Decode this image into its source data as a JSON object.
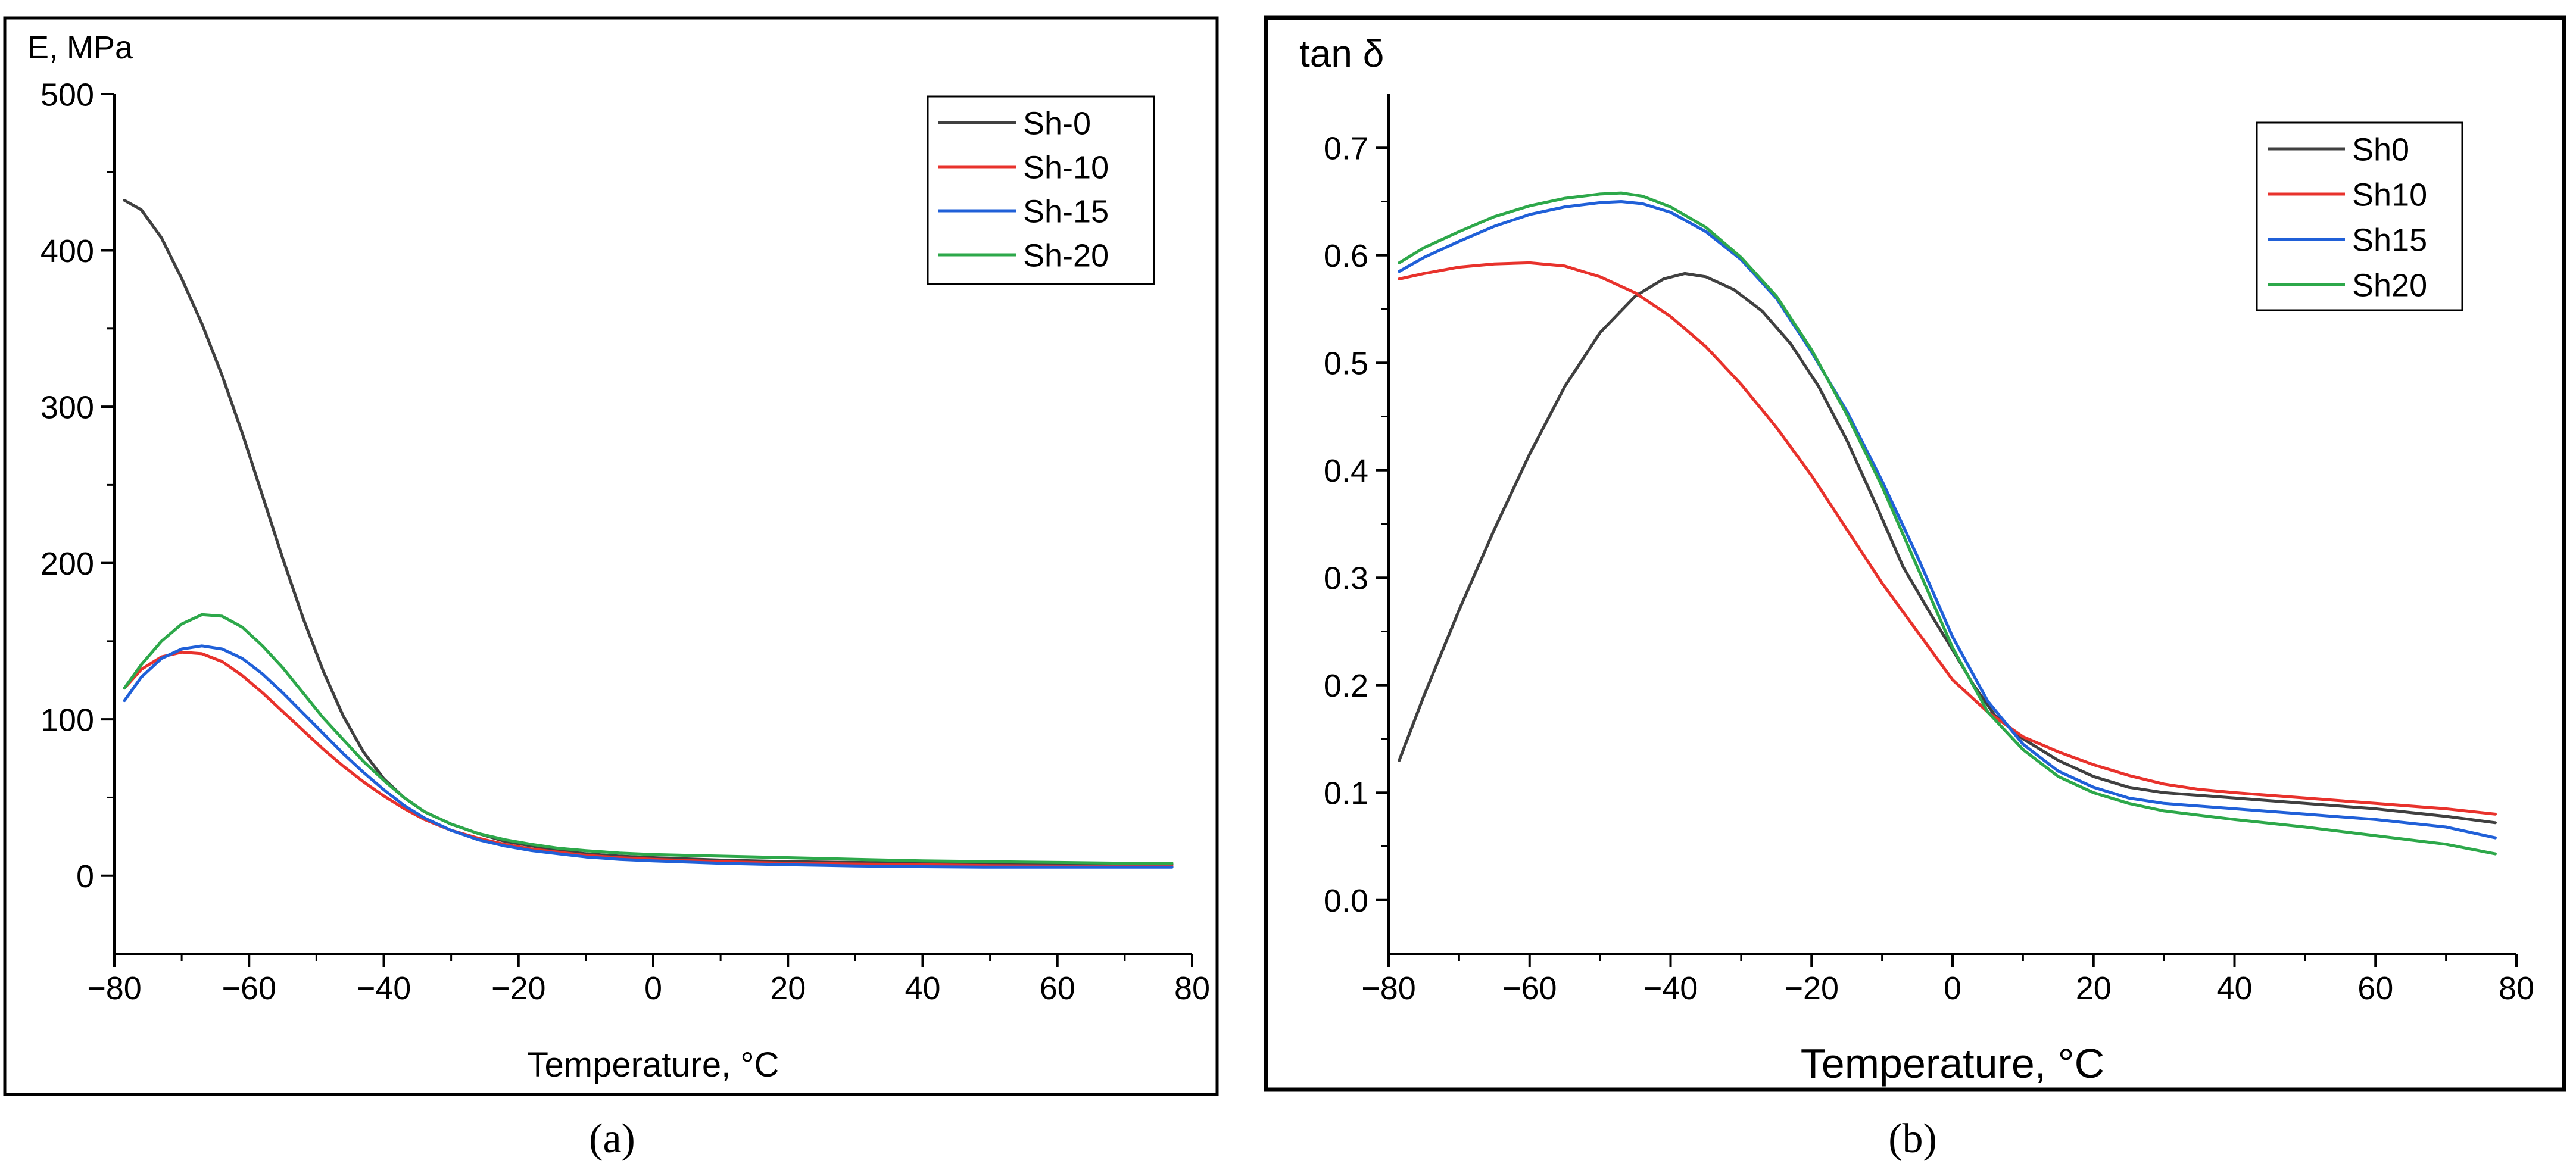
{
  "chart_data": [
    {
      "panel": "a",
      "caption": "(a)",
      "type": "line",
      "title": "",
      "xlabel": "Temperature, °C",
      "ylabel": "E, MPa",
      "xlim": [
        -80,
        80
      ],
      "ylim": [
        -50,
        500
      ],
      "xticks": [
        -80,
        -60,
        -40,
        -20,
        0,
        20,
        40,
        60,
        80
      ],
      "yticks": [
        0,
        100,
        200,
        300,
        400,
        500
      ],
      "grid": false,
      "legend_position": "top-right",
      "series": [
        {
          "name": "Sh-0",
          "color": "#404040",
          "points": [
            [
              -78.5,
              432
            ],
            [
              -76,
              426
            ],
            [
              -73,
              408
            ],
            [
              -70,
              382
            ],
            [
              -67,
              353
            ],
            [
              -64,
              320
            ],
            [
              -61,
              283
            ],
            [
              -58,
              243
            ],
            [
              -55,
              203
            ],
            [
              -52,
              165
            ],
            [
              -49,
              131
            ],
            [
              -46,
              102
            ],
            [
              -43,
              79
            ],
            [
              -40,
              62
            ],
            [
              -37,
              50
            ],
            [
              -34,
              41
            ],
            [
              -30,
              33
            ],
            [
              -26,
              27
            ],
            [
              -22,
              22
            ],
            [
              -18,
              19
            ],
            [
              -14,
              16
            ],
            [
              -10,
              14
            ],
            [
              -5,
              12.5
            ],
            [
              0,
              11.5
            ],
            [
              10,
              10
            ],
            [
              20,
              9
            ],
            [
              30,
              8.5
            ],
            [
              40,
              8
            ],
            [
              50,
              7.5
            ],
            [
              60,
              7.2
            ],
            [
              70,
              7
            ],
            [
              77,
              7
            ]
          ]
        },
        {
          "name": "Sh-10",
          "color": "#e8322c",
          "points": [
            [
              -78.5,
              120
            ],
            [
              -76,
              132
            ],
            [
              -73,
              140
            ],
            [
              -70,
              143
            ],
            [
              -67,
              142
            ],
            [
              -64,
              137
            ],
            [
              -61,
              128
            ],
            [
              -58,
              117
            ],
            [
              -55,
              105
            ],
            [
              -52,
              93
            ],
            [
              -49,
              81
            ],
            [
              -46,
              70
            ],
            [
              -43,
              60
            ],
            [
              -40,
              51
            ],
            [
              -37,
              43
            ],
            [
              -34,
              36
            ],
            [
              -30,
              29
            ],
            [
              -26,
              24
            ],
            [
              -22,
              20
            ],
            [
              -18,
              17
            ],
            [
              -14,
              15
            ],
            [
              -10,
              13
            ],
            [
              -5,
              11.5
            ],
            [
              0,
              10.5
            ],
            [
              10,
              9
            ],
            [
              20,
              8
            ],
            [
              30,
              7.5
            ],
            [
              40,
              7
            ],
            [
              50,
              6.5
            ],
            [
              60,
              6.2
            ],
            [
              70,
              6
            ],
            [
              77,
              6
            ]
          ]
        },
        {
          "name": "Sh-15",
          "color": "#2060d8",
          "points": [
            [
              -78.5,
              112
            ],
            [
              -76,
              127
            ],
            [
              -73,
              139
            ],
            [
              -70,
              145
            ],
            [
              -67,
              147
            ],
            [
              -64,
              145
            ],
            [
              -61,
              139
            ],
            [
              -58,
              129
            ],
            [
              -55,
              117
            ],
            [
              -52,
              104
            ],
            [
              -49,
              91
            ],
            [
              -46,
              78
            ],
            [
              -43,
              66
            ],
            [
              -40,
              55
            ],
            [
              -37,
              45
            ],
            [
              -34,
              37
            ],
            [
              -30,
              29
            ],
            [
              -26,
              23
            ],
            [
              -22,
              19
            ],
            [
              -18,
              16
            ],
            [
              -14,
              14
            ],
            [
              -10,
              12
            ],
            [
              -5,
              10.5
            ],
            [
              0,
              9.5
            ],
            [
              10,
              8
            ],
            [
              20,
              7
            ],
            [
              30,
              6.3
            ],
            [
              40,
              5.8
            ],
            [
              50,
              5.5
            ],
            [
              60,
              5.5
            ],
            [
              70,
              5.5
            ],
            [
              77,
              5.5
            ]
          ]
        },
        {
          "name": "Sh-20",
          "color": "#2da84a",
          "points": [
            [
              -78.5,
              120
            ],
            [
              -76,
              135
            ],
            [
              -73,
              150
            ],
            [
              -70,
              161
            ],
            [
              -67,
              167
            ],
            [
              -64,
              166
            ],
            [
              -61,
              159
            ],
            [
              -58,
              147
            ],
            [
              -55,
              133
            ],
            [
              -52,
              117
            ],
            [
              -49,
              101
            ],
            [
              -46,
              87
            ],
            [
              -43,
              73
            ],
            [
              -40,
              61
            ],
            [
              -37,
              50
            ],
            [
              -34,
              41
            ],
            [
              -30,
              33
            ],
            [
              -26,
              27
            ],
            [
              -22,
              23
            ],
            [
              -18,
              20
            ],
            [
              -14,
              17.5
            ],
            [
              -10,
              16
            ],
            [
              -5,
              14.5
            ],
            [
              0,
              13.5
            ],
            [
              10,
              12.5
            ],
            [
              20,
              11.5
            ],
            [
              30,
              10.5
            ],
            [
              40,
              9.5
            ],
            [
              50,
              9
            ],
            [
              60,
              8.5
            ],
            [
              70,
              8
            ],
            [
              77,
              8
            ]
          ]
        }
      ]
    },
    {
      "panel": "b",
      "caption": "(b)",
      "type": "line",
      "title": "",
      "xlabel": "Temperature, °C",
      "ylabel": "tan δ",
      "xlim": [
        -80,
        80
      ],
      "ylim": [
        -0.05,
        0.75
      ],
      "xticks": [
        -80,
        -60,
        -40,
        -20,
        0,
        20,
        40,
        60,
        80
      ],
      "yticks": [
        0.0,
        0.1,
        0.2,
        0.3,
        0.4,
        0.5,
        0.6,
        0.7
      ],
      "grid": false,
      "legend_position": "top-right",
      "series": [
        {
          "name": "Sh0",
          "color": "#404040",
          "points": [
            [
              -78.5,
              0.13
            ],
            [
              -75,
              0.19
            ],
            [
              -70,
              0.27
            ],
            [
              -65,
              0.345
            ],
            [
              -60,
              0.415
            ],
            [
              -55,
              0.478
            ],
            [
              -50,
              0.528
            ],
            [
              -45,
              0.562
            ],
            [
              -41,
              0.578
            ],
            [
              -38,
              0.583
            ],
            [
              -35,
              0.58
            ],
            [
              -31,
              0.568
            ],
            [
              -27,
              0.548
            ],
            [
              -23,
              0.518
            ],
            [
              -19,
              0.478
            ],
            [
              -15,
              0.428
            ],
            [
              -11,
              0.37
            ],
            [
              -7,
              0.31
            ],
            [
              -3,
              0.265
            ],
            [
              0,
              0.233
            ],
            [
              3,
              0.2
            ],
            [
              6,
              0.172
            ],
            [
              10,
              0.15
            ],
            [
              15,
              0.13
            ],
            [
              20,
              0.115
            ],
            [
              25,
              0.105
            ],
            [
              30,
              0.1
            ],
            [
              40,
              0.095
            ],
            [
              50,
              0.09
            ],
            [
              60,
              0.085
            ],
            [
              70,
              0.078
            ],
            [
              77,
              0.072
            ]
          ]
        },
        {
          "name": "Sh10",
          "color": "#e8322c",
          "points": [
            [
              -78.5,
              0.578
            ],
            [
              -75,
              0.583
            ],
            [
              -70,
              0.589
            ],
            [
              -65,
              0.592
            ],
            [
              -60,
              0.593
            ],
            [
              -55,
              0.59
            ],
            [
              -50,
              0.58
            ],
            [
              -45,
              0.565
            ],
            [
              -40,
              0.543
            ],
            [
              -35,
              0.515
            ],
            [
              -30,
              0.48
            ],
            [
              -25,
              0.44
            ],
            [
              -20,
              0.395
            ],
            [
              -15,
              0.345
            ],
            [
              -10,
              0.295
            ],
            [
              -5,
              0.25
            ],
            [
              0,
              0.205
            ],
            [
              5,
              0.175
            ],
            [
              10,
              0.152
            ],
            [
              15,
              0.138
            ],
            [
              20,
              0.126
            ],
            [
              25,
              0.116
            ],
            [
              30,
              0.108
            ],
            [
              35,
              0.103
            ],
            [
              40,
              0.1
            ],
            [
              50,
              0.095
            ],
            [
              60,
              0.09
            ],
            [
              70,
              0.085
            ],
            [
              77,
              0.08
            ]
          ]
        },
        {
          "name": "Sh15",
          "color": "#2060d8",
          "points": [
            [
              -78.5,
              0.585
            ],
            [
              -75,
              0.598
            ],
            [
              -70,
              0.613
            ],
            [
              -65,
              0.627
            ],
            [
              -60,
              0.638
            ],
            [
              -55,
              0.645
            ],
            [
              -50,
              0.649
            ],
            [
              -47,
              0.65
            ],
            [
              -44,
              0.648
            ],
            [
              -40,
              0.64
            ],
            [
              -35,
              0.622
            ],
            [
              -30,
              0.596
            ],
            [
              -25,
              0.56
            ],
            [
              -20,
              0.51
            ],
            [
              -15,
              0.455
            ],
            [
              -10,
              0.39
            ],
            [
              -5,
              0.32
            ],
            [
              0,
              0.245
            ],
            [
              5,
              0.185
            ],
            [
              10,
              0.145
            ],
            [
              15,
              0.12
            ],
            [
              20,
              0.105
            ],
            [
              25,
              0.095
            ],
            [
              30,
              0.09
            ],
            [
              40,
              0.085
            ],
            [
              50,
              0.08
            ],
            [
              60,
              0.075
            ],
            [
              70,
              0.068
            ],
            [
              77,
              0.058
            ]
          ]
        },
        {
          "name": "Sh20",
          "color": "#2da84a",
          "points": [
            [
              -78.5,
              0.593
            ],
            [
              -75,
              0.607
            ],
            [
              -70,
              0.622
            ],
            [
              -65,
              0.636
            ],
            [
              -60,
              0.646
            ],
            [
              -55,
              0.653
            ],
            [
              -50,
              0.657
            ],
            [
              -47,
              0.658
            ],
            [
              -44,
              0.655
            ],
            [
              -40,
              0.645
            ],
            [
              -35,
              0.626
            ],
            [
              -30,
              0.598
            ],
            [
              -25,
              0.562
            ],
            [
              -20,
              0.512
            ],
            [
              -15,
              0.452
            ],
            [
              -10,
              0.385
            ],
            [
              -5,
              0.31
            ],
            [
              0,
              0.235
            ],
            [
              5,
              0.175
            ],
            [
              10,
              0.14
            ],
            [
              15,
              0.115
            ],
            [
              20,
              0.1
            ],
            [
              25,
              0.09
            ],
            [
              30,
              0.083
            ],
            [
              40,
              0.075
            ],
            [
              50,
              0.068
            ],
            [
              60,
              0.06
            ],
            [
              70,
              0.052
            ],
            [
              77,
              0.043
            ]
          ]
        }
      ]
    }
  ]
}
